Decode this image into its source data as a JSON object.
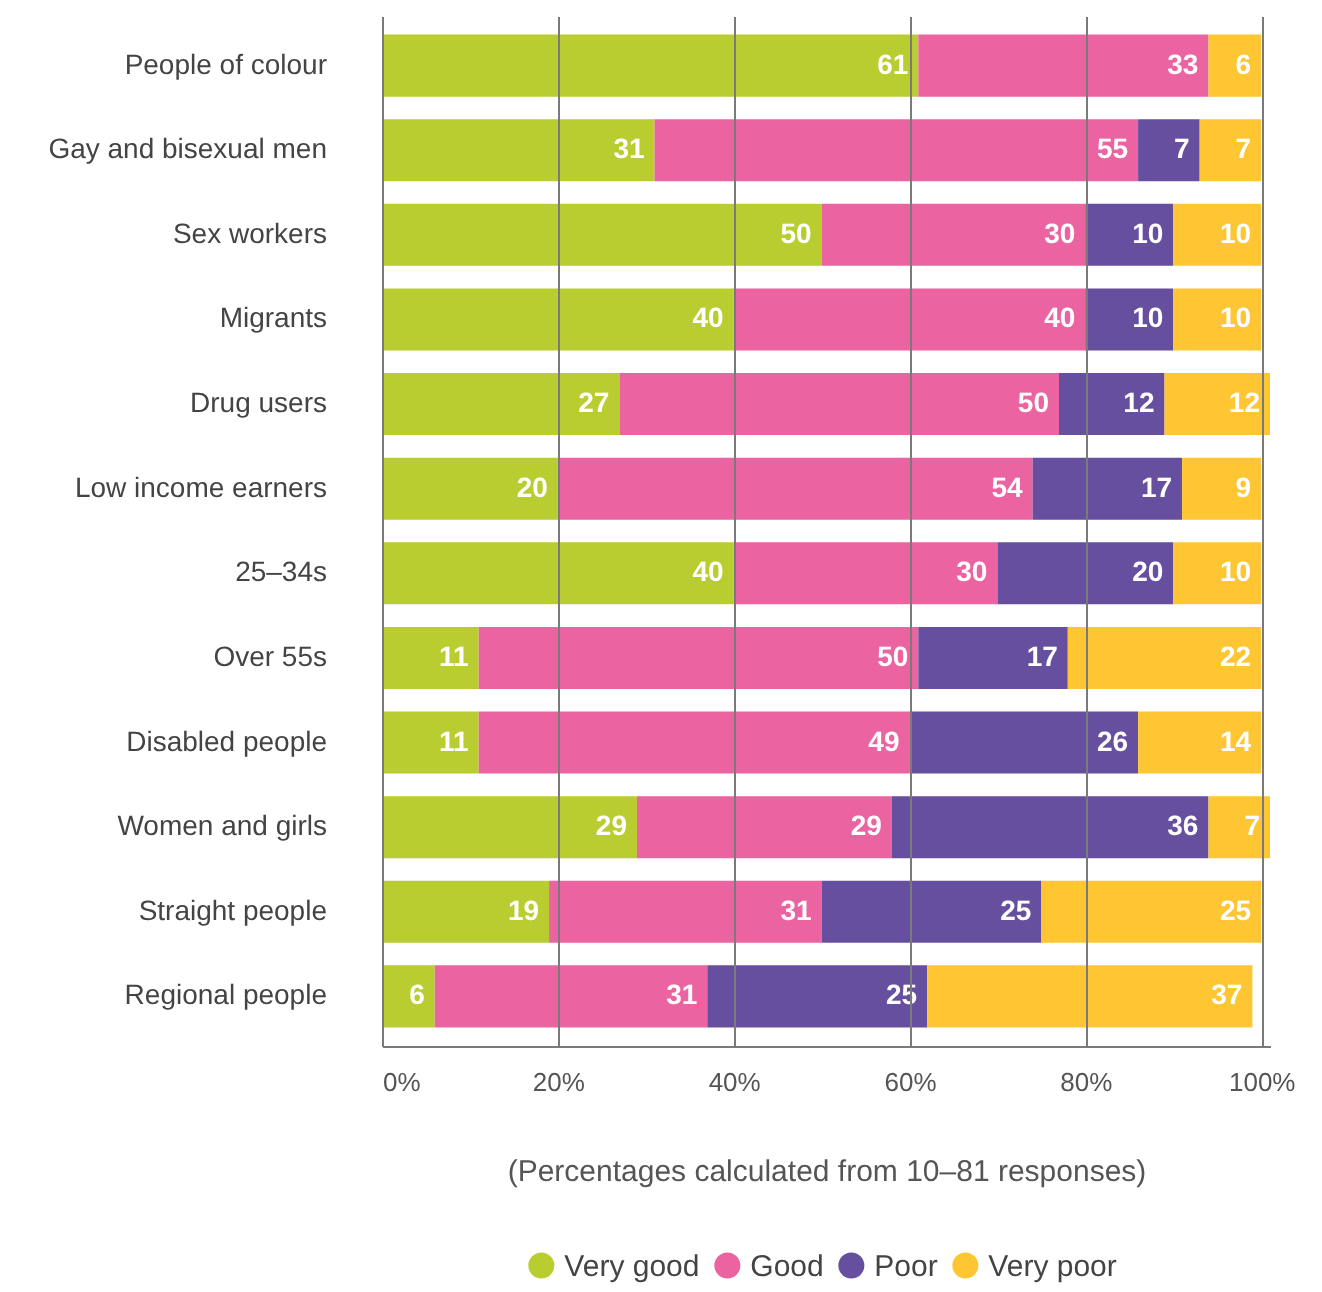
{
  "chart_data": {
    "type": "bar",
    "orientation": "horizontal",
    "stacked": true,
    "categories": [
      "People of colour",
      "Gay and bisexual men",
      "Sex workers",
      "Migrants",
      "Drug users",
      "Low income earners",
      "25–34s",
      "Over 55s",
      "Disabled people",
      "Women and girls",
      "Straight people",
      "Regional people"
    ],
    "series": [
      {
        "name": "Very good",
        "color": "#bacd30",
        "values": [
          61,
          31,
          50,
          40,
          27,
          20,
          40,
          11,
          11,
          29,
          19,
          6
        ]
      },
      {
        "name": "Good",
        "color": "#eb64a1",
        "values": [
          33,
          55,
          30,
          40,
          50,
          54,
          30,
          50,
          49,
          29,
          31,
          31
        ]
      },
      {
        "name": "Poor",
        "color": "#674fa0",
        "values": [
          null,
          7,
          10,
          10,
          12,
          17,
          20,
          17,
          26,
          36,
          25,
          25
        ]
      },
      {
        "name": "Very poor",
        "color": "#fdc632",
        "values": [
          6,
          7,
          10,
          10,
          12,
          9,
          10,
          22,
          14,
          7,
          25,
          37
        ]
      }
    ],
    "xlim": [
      0,
      101
    ],
    "xticks": [
      {
        "value": 0,
        "label": "0%"
      },
      {
        "value": 20,
        "label": "20%"
      },
      {
        "value": 40,
        "label": "40%"
      },
      {
        "value": 60,
        "label": "60%"
      },
      {
        "value": 80,
        "label": "80%"
      },
      {
        "value": 100,
        "label": "100%"
      }
    ],
    "xlabel": "(Percentages calculated from 10–81 responses)",
    "grid": "x",
    "legend": "bottom",
    "data_labels": true
  }
}
